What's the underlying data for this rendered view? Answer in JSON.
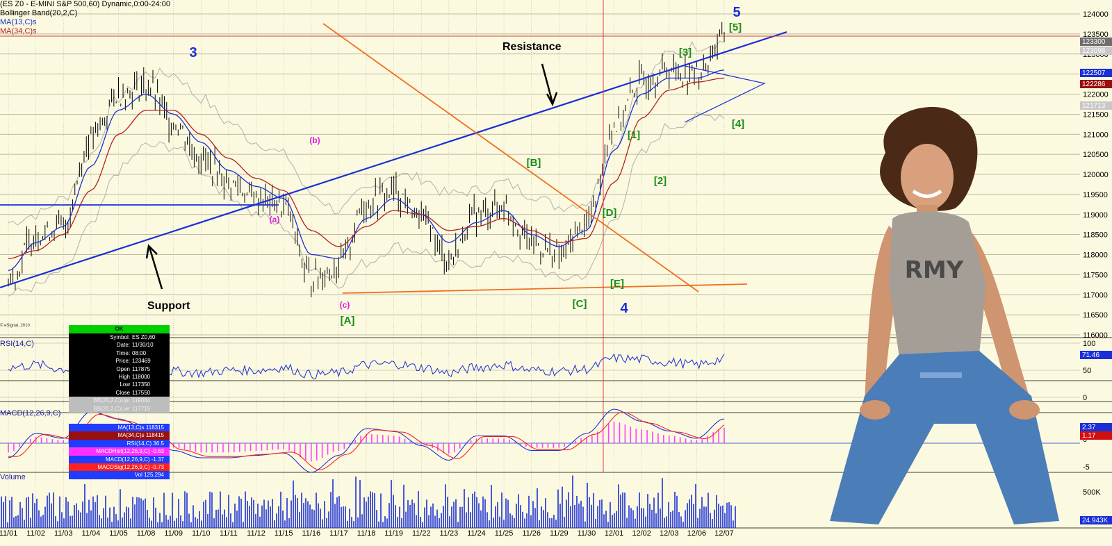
{
  "header": {
    "title_line": "(ES Z0 - E-MINI S&P 500,60) Dynamic,0:00-24:00",
    "bollinger": "Bollinger Band(20,2,C)",
    "ma13": "MA(13,C)s",
    "ma34": "MA(34,C)s"
  },
  "copyright": "© eSignal, 2010",
  "panels": {
    "rsi_label": "RSI(14,C)",
    "macd_label": "MACD(12,26,9,C)",
    "volume_label": "Volume"
  },
  "info_box": {
    "status": "OK",
    "rows": [
      {
        "k": "Symbol:",
        "v": "ES Z0,60"
      },
      {
        "k": "Date:",
        "v": "11/30/10"
      },
      {
        "k": "Time:",
        "v": "08:00"
      },
      {
        "k": "Price:",
        "v": "123469"
      },
      {
        "k": "Open",
        "v": "117875"
      },
      {
        "k": "High",
        "v": "118000"
      },
      {
        "k": "Low",
        "v": "117350"
      },
      {
        "k": "Close",
        "v": "117550"
      }
    ],
    "gray_rows": [
      {
        "k": "BB(20,2,C)Upr",
        "v": "119064"
      },
      {
        "k": "BB(20,2,C)Lwr",
        "v": "117715"
      }
    ],
    "indicators": [
      {
        "text": "MA(13,C)s 118315",
        "bg": "#1f3cff"
      },
      {
        "text": "MA(34,C)s 118415",
        "bg": "#9a1010"
      },
      {
        "text": "RSI(14,C) 36.5",
        "bg": "#1f3cff"
      },
      {
        "text": "MACDHist(12,26,9,C) -0.63",
        "bg": "#ff30ff"
      },
      {
        "text": "MACD(12,26,9,C) -1.37",
        "bg": "#1f3cff"
      },
      {
        "text": "MACDSig(12,26,9,C) -0.73",
        "bg": "#ff2020"
      },
      {
        "text": "Vol 125,294",
        "bg": "#1f3cff"
      }
    ]
  },
  "annotations": {
    "resistance": "Resistance",
    "support": "Support",
    "wave_labels": [
      {
        "text": "3",
        "color": "#1a2fd6"
      },
      {
        "text": "4",
        "color": "#1a2fd6"
      },
      {
        "text": "5",
        "color": "#1a2fd6"
      },
      {
        "text": "(a)",
        "color": "#e020e0"
      },
      {
        "text": "(b)",
        "color": "#e020e0"
      },
      {
        "text": "(c)",
        "color": "#e020e0"
      },
      {
        "text": "[A]",
        "color": "#1a8c1a"
      },
      {
        "text": "[B]",
        "color": "#1a8c1a"
      },
      {
        "text": "[C]",
        "color": "#1a8c1a"
      },
      {
        "text": "[D]",
        "color": "#1a8c1a"
      },
      {
        "text": "[E]",
        "color": "#1a8c1a"
      },
      {
        "text": "[1]",
        "color": "#1a8c1a"
      },
      {
        "text": "[2]",
        "color": "#1a8c1a"
      },
      {
        "text": "[3]",
        "color": "#1a8c1a"
      },
      {
        "text": "[4]",
        "color": "#1a8c1a"
      },
      {
        "text": "[5]",
        "color": "#1a8c1a"
      }
    ]
  },
  "right_badges": {
    "price_current": "123300",
    "price_mid": "123098",
    "ma13_price": "122507",
    "ma34_price": "122286",
    "bb_price": "121713",
    "rsi_value": "71.46",
    "macd_1": "2.37",
    "macd_2": "1.17",
    "volume_value": "24.943K"
  },
  "chart_data": {
    "type": "line",
    "title": "(ES Z0 - E-MINI S&P 500,60) Dynamic,0:00-24:00",
    "x": [
      "11/01",
      "11/02",
      "11/03",
      "11/04",
      "11/05",
      "11/08",
      "11/09",
      "11/10",
      "11/11",
      "11/12",
      "11/15",
      "11/16",
      "11/17",
      "11/18",
      "11/19",
      "11/22",
      "11/23",
      "11/24",
      "11/25",
      "11/26",
      "11/29",
      "11/30",
      "12/01",
      "12/02",
      "12/03",
      "12/06",
      "12/07"
    ],
    "price_axis": {
      "ticks": [
        "124000",
        "123500",
        "123000",
        "122500",
        "122000",
        "121500",
        "121000",
        "120500",
        "120000",
        "119500",
        "119000",
        "118500",
        "118000",
        "117500",
        "117000",
        "116500",
        "116000"
      ],
      "ylim": [
        116000,
        124000
      ]
    },
    "rsi_axis": {
      "ticks": [
        "100",
        "50",
        "0"
      ],
      "ylim": [
        0,
        100
      ]
    },
    "macd_axis": {
      "ticks": [
        "0",
        "-5"
      ]
    },
    "volume_axis": {
      "ticks": [
        "500K"
      ]
    },
    "series": [
      {
        "name": "Price",
        "color": "#000000",
        "values": [
          117300,
          118500,
          118700,
          120900,
          122000,
          122200,
          121300,
          120400,
          119800,
          119400,
          119200,
          117400,
          117700,
          119300,
          119600,
          118900,
          117900,
          119000,
          119200,
          118300,
          118000,
          118800,
          121200,
          122300,
          122600,
          122500,
          123400
        ]
      },
      {
        "name": "MA(13,C)s",
        "color": "#1a2fd6",
        "values": [
          117600,
          118300,
          118700,
          120200,
          121600,
          122000,
          121500,
          120800,
          120100,
          119700,
          119400,
          118000,
          117900,
          118900,
          119400,
          119000,
          118300,
          118800,
          119100,
          118500,
          118200,
          118600,
          120600,
          122000,
          122400,
          122400,
          122600
        ]
      },
      {
        "name": "MA(34,C)s",
        "color": "#b02020",
        "values": [
          117900,
          118100,
          118500,
          119600,
          121000,
          121600,
          121600,
          121000,
          120400,
          119900,
          119600,
          118600,
          118200,
          118700,
          119100,
          119000,
          118600,
          118700,
          118900,
          118600,
          118300,
          118400,
          119800,
          121400,
          122100,
          122300,
          122400
        ]
      },
      {
        "name": "RSI(14,C)",
        "color": "#1a2fd6",
        "values": [
          55,
          60,
          52,
          62,
          58,
          55,
          48,
          45,
          50,
          50,
          55,
          42,
          45,
          60,
          62,
          55,
          45,
          55,
          60,
          50,
          48,
          52,
          72,
          70,
          65,
          60,
          71
        ]
      }
    ]
  }
}
